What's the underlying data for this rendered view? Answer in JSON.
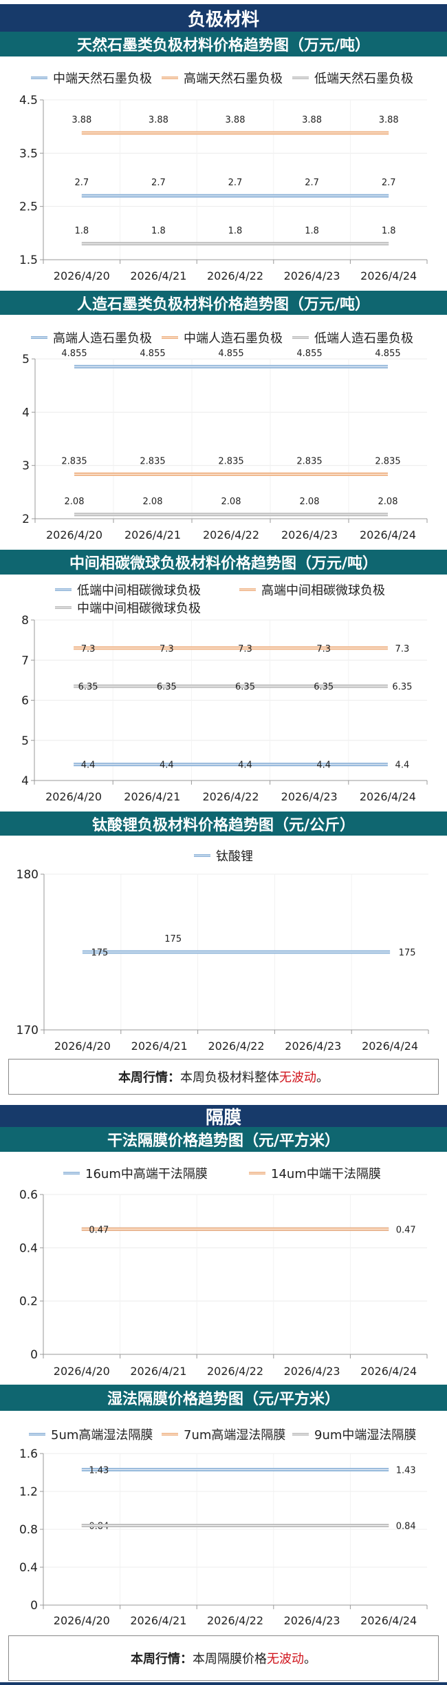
{
  "sections": {
    "anode": "负极材料",
    "separator": "隔膜"
  },
  "colors": {
    "navy": "#173a6a",
    "teal": "#0f6670",
    "blue": "#8fb4d9",
    "orange": "#efb385",
    "gray": "#bdbdbd",
    "highlight": "#d0141c"
  },
  "summaries": [
    {
      "label": "本周行情：",
      "text": "本周负极材料整体",
      "highlight": "无波动",
      "end": "。"
    },
    {
      "label": "本周行情：",
      "text": "本周隔膜价格",
      "highlight": "无波动",
      "end": "。"
    }
  ],
  "chart_data": [
    {
      "type": "line",
      "title": "天然石墨类负极材料价格趋势图（万元/吨）",
      "categories": [
        "2026/4/20",
        "2026/4/21",
        "2026/4/22",
        "2026/4/23",
        "2026/4/24"
      ],
      "ylim": [
        1.5,
        4.5
      ],
      "yticks": [
        "1.5",
        "2.5",
        "3.5",
        "4.5"
      ],
      "grid": true,
      "legend": "top",
      "series": [
        {
          "name": "中端天然石墨负极",
          "color": "blue",
          "values": [
            2.7,
            2.7,
            2.7,
            2.7,
            2.7
          ],
          "labels": [
            "2.7",
            "2.7",
            "2.7",
            "2.7",
            "2.7"
          ]
        },
        {
          "name": "高端天然石墨负极",
          "color": "orange",
          "values": [
            3.88,
            3.88,
            3.88,
            3.88,
            3.88
          ],
          "labels": [
            "3.88",
            "3.88",
            "3.88",
            "3.88",
            "3.88"
          ]
        },
        {
          "name": "低端天然石墨负极",
          "color": "gray",
          "values": [
            1.8,
            1.8,
            1.8,
            1.8,
            1.8
          ],
          "labels": [
            "1.8",
            "1.8",
            "1.8",
            "1.8",
            "1.8"
          ]
        }
      ]
    },
    {
      "type": "line",
      "title": "人造石墨类负极材料价格趋势图（万元/吨）",
      "categories": [
        "2026/4/20",
        "2026/4/21",
        "2026/4/22",
        "2026/4/23",
        "2026/4/24"
      ],
      "ylim": [
        2,
        5
      ],
      "yticks": [
        "2",
        "3",
        "4",
        "5"
      ],
      "grid": true,
      "legend": "top",
      "series": [
        {
          "name": "高端人造石墨负极",
          "color": "blue",
          "values": [
            4.855,
            4.855,
            4.855,
            4.855,
            4.855
          ],
          "labels": [
            "4.855",
            "4.855",
            "4.855",
            "4.855",
            "4.855"
          ]
        },
        {
          "name": "中端人造石墨负极",
          "color": "orange",
          "values": [
            2.835,
            2.835,
            2.835,
            2.835,
            2.835
          ],
          "labels": [
            "2.835",
            "2.835",
            "2.835",
            "2.835",
            "2.835"
          ]
        },
        {
          "name": "低端人造石墨负极",
          "color": "gray",
          "values": [
            2.08,
            2.08,
            2.08,
            2.08,
            2.08
          ],
          "labels": [
            "2.08",
            "2.08",
            "2.08",
            "2.08",
            "2.08"
          ]
        }
      ]
    },
    {
      "type": "line",
      "title": "中间相碳微球负极材料价格趋势图（万元/吨）",
      "categories": [
        "2026/4/20",
        "2026/4/21",
        "2026/4/22",
        "2026/4/23",
        "2026/4/24"
      ],
      "ylim": [
        4,
        8
      ],
      "yticks": [
        "4",
        "5",
        "6",
        "7",
        "8"
      ],
      "grid": true,
      "legend": "top",
      "series": [
        {
          "name": "低端中间相碳微球负极",
          "color": "blue",
          "values": [
            4.4,
            4.4,
            4.4,
            4.4,
            4.4
          ],
          "labels": [
            "4.4",
            "4.4",
            "4.4",
            "4.4",
            "4.4"
          ]
        },
        {
          "name": "高端中间相碳微球负极",
          "color": "orange",
          "values": [
            7.3,
            7.3,
            7.3,
            7.3,
            7.3
          ],
          "labels": [
            "7.3",
            "7.3",
            "7.3",
            "7.3",
            "7.3"
          ]
        },
        {
          "name": "中端中间相碳微球负极",
          "color": "gray",
          "values": [
            6.35,
            6.35,
            6.35,
            6.35,
            6.35
          ],
          "labels": [
            "6.35",
            "6.35",
            "6.35",
            "6.35",
            "6.35"
          ]
        }
      ]
    },
    {
      "type": "line",
      "title": "钛酸锂负极材料价格趋势图（元/公斤）",
      "categories": [
        "2026/4/20",
        "2026/4/21",
        "2026/4/22",
        "2026/4/23",
        "2026/4/24"
      ],
      "ylim": [
        170,
        180
      ],
      "yticks": [
        "170",
        "180"
      ],
      "grid": true,
      "legend": "top",
      "series": [
        {
          "name": "钛酸锂",
          "color": "blue",
          "values": [
            175,
            175,
            175,
            175,
            175
          ],
          "labels": [
            "175",
            "175",
            null,
            null,
            "175"
          ]
        }
      ]
    },
    {
      "type": "line",
      "title": "干法隔膜价格趋势图（元/平方米）",
      "categories": [
        "2026/4/20",
        "2026/4/21",
        "2026/4/22",
        "2026/4/23",
        "2026/4/24"
      ],
      "ylim": [
        0,
        0.6
      ],
      "yticks": [
        "0",
        "0.2",
        "0.4",
        "0.6"
      ],
      "grid": true,
      "legend": "top",
      "series": [
        {
          "name": "16um中高端干法隔膜",
          "color": "blue",
          "values": [
            0.47,
            0.47,
            0.47,
            0.47,
            0.47
          ],
          "labels": [
            null,
            null,
            null,
            null,
            null
          ]
        },
        {
          "name": "14um中端干法隔膜",
          "color": "orange",
          "values": [
            0.47,
            0.47,
            0.47,
            0.47,
            0.47
          ],
          "labels": [
            "0.47",
            null,
            null,
            null,
            "0.47"
          ]
        }
      ]
    },
    {
      "type": "line",
      "title": "湿法隔膜价格趋势图（元/平方米）",
      "categories": [
        "2026/4/20",
        "2026/4/21",
        "2026/4/22",
        "2026/4/23",
        "2026/4/24"
      ],
      "ylim": [
        0,
        1.6
      ],
      "yticks": [
        "0",
        "0.4",
        "0.8",
        "1.2",
        "1.6"
      ],
      "grid": true,
      "legend": "top",
      "series": [
        {
          "name": "5um高端湿法隔膜",
          "color": "blue",
          "values": [
            1.43,
            1.43,
            1.43,
            1.43,
            1.43
          ],
          "labels": [
            "1.43",
            null,
            null,
            null,
            "1.43"
          ]
        },
        {
          "name": "7um高端湿法隔膜",
          "color": "orange",
          "values": [
            0.84,
            0.84,
            0.84,
            0.84,
            0.84
          ],
          "labels": [
            "0.84",
            null,
            null,
            null,
            "0.84"
          ]
        },
        {
          "name": "9um中端湿法隔膜",
          "color": "gray",
          "values": [
            0.84,
            0.84,
            0.84,
            0.84,
            0.84
          ],
          "labels": [
            null,
            null,
            null,
            null,
            null
          ]
        }
      ]
    }
  ]
}
